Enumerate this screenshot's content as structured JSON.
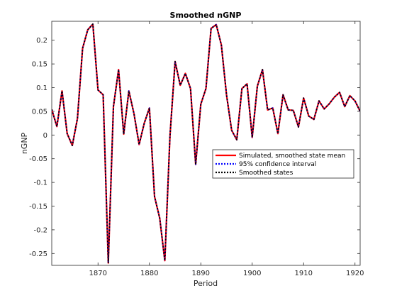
{
  "chart_data": {
    "type": "line",
    "title": "Smoothed nGNP",
    "xlabel": "Period",
    "ylabel": "nGNP",
    "xlim": [
      1861,
      1921
    ],
    "ylim": [
      -0.275,
      0.24
    ],
    "xticks": [
      1870,
      1880,
      1890,
      1900,
      1910,
      1920
    ],
    "yticks": [
      -0.25,
      -0.2,
      -0.15,
      -0.1,
      -0.05,
      0,
      0.05,
      0.1,
      0.15,
      0.2
    ],
    "ytick_labels": [
      "-0.25",
      "-0.2",
      "-0.15",
      "-0.1",
      "-0.05",
      "0",
      "0.05",
      "0.1",
      "0.15",
      "0.2"
    ],
    "grid": false,
    "legend_position": "center-right",
    "x": [
      1861,
      1862,
      1863,
      1864,
      1865,
      1866,
      1867,
      1868,
      1869,
      1870,
      1871,
      1872,
      1873,
      1874,
      1875,
      1876,
      1877,
      1878,
      1879,
      1880,
      1881,
      1882,
      1883,
      1884,
      1885,
      1886,
      1887,
      1888,
      1889,
      1890,
      1891,
      1892,
      1893,
      1894,
      1895,
      1896,
      1897,
      1898,
      1899,
      1900,
      1901,
      1902,
      1903,
      1904,
      1905,
      1906,
      1907,
      1908,
      1909,
      1910,
      1911,
      1912,
      1913,
      1914,
      1915,
      1916,
      1917,
      1918,
      1919,
      1920,
      1921
    ],
    "series": [
      {
        "name": "Simulated, smoothed state mean",
        "color": "#ff0000",
        "style": "solid",
        "values": [
          0.054,
          0.018,
          0.093,
          0.003,
          -0.022,
          0.035,
          0.183,
          0.222,
          0.234,
          0.095,
          0.085,
          -0.27,
          0.06,
          0.138,
          0.002,
          0.093,
          0.045,
          -0.02,
          0.025,
          0.057,
          -0.13,
          -0.175,
          -0.265,
          -0.002,
          0.155,
          0.105,
          0.13,
          0.098,
          -0.062,
          0.065,
          0.098,
          0.225,
          0.233,
          0.19,
          0.085,
          0.01,
          -0.01,
          0.098,
          0.108,
          -0.005,
          0.103,
          0.138,
          0.053,
          0.057,
          0.003,
          0.085,
          0.053,
          0.052,
          0.017,
          0.078,
          0.04,
          0.033,
          0.072,
          0.055,
          0.066,
          0.08,
          0.09,
          0.06,
          0.083,
          0.072,
          0.05
        ]
      },
      {
        "name": "95% confidence interval",
        "color": "#0000ff",
        "style": "dotted",
        "values": [
          0.054,
          0.018,
          0.093,
          0.003,
          -0.022,
          0.035,
          0.183,
          0.222,
          0.234,
          0.095,
          0.085,
          -0.27,
          0.06,
          0.138,
          0.002,
          0.093,
          0.045,
          -0.02,
          0.025,
          0.057,
          -0.13,
          -0.175,
          -0.265,
          -0.002,
          0.155,
          0.105,
          0.13,
          0.098,
          -0.062,
          0.065,
          0.098,
          0.225,
          0.233,
          0.19,
          0.085,
          0.01,
          -0.01,
          0.098,
          0.108,
          -0.005,
          0.103,
          0.138,
          0.053,
          0.057,
          0.003,
          0.085,
          0.053,
          0.052,
          0.017,
          0.078,
          0.04,
          0.033,
          0.072,
          0.055,
          0.066,
          0.08,
          0.09,
          0.06,
          0.083,
          0.072,
          0.05
        ]
      },
      {
        "name": "Smoothed states",
        "color": "#000000",
        "style": "dotted",
        "values": [
          0.054,
          0.018,
          0.093,
          0.003,
          -0.022,
          0.035,
          0.183,
          0.222,
          0.234,
          0.095,
          0.085,
          -0.27,
          0.06,
          0.138,
          0.002,
          0.093,
          0.045,
          -0.02,
          0.025,
          0.057,
          -0.13,
          -0.175,
          -0.265,
          -0.002,
          0.155,
          0.105,
          0.13,
          0.098,
          -0.062,
          0.065,
          0.098,
          0.225,
          0.233,
          0.19,
          0.085,
          0.01,
          -0.01,
          0.098,
          0.108,
          -0.005,
          0.103,
          0.138,
          0.053,
          0.057,
          0.003,
          0.085,
          0.053,
          0.052,
          0.017,
          0.078,
          0.04,
          0.033,
          0.072,
          0.055,
          0.066,
          0.08,
          0.09,
          0.06,
          0.083,
          0.072,
          0.05
        ]
      }
    ]
  }
}
